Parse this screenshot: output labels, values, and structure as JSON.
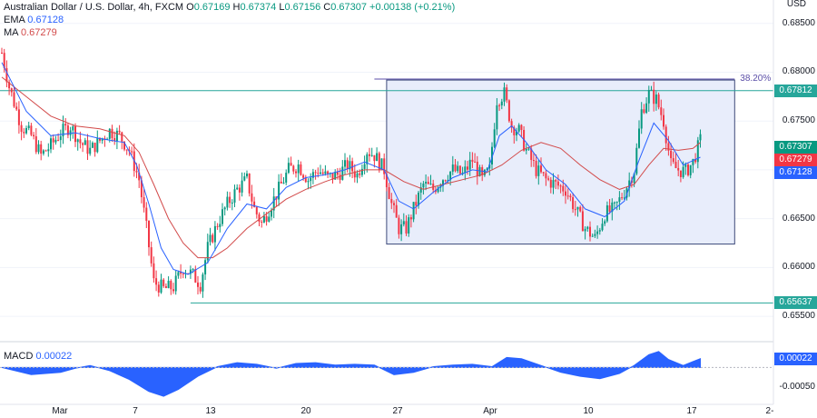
{
  "header": {
    "symbol": "Australian Dollar / U.S. Dollar, 4h, FXCM",
    "ohlc": [
      {
        "key": "O",
        "value": "0.67169"
      },
      {
        "key": "H",
        "value": "0.67374"
      },
      {
        "key": "L",
        "value": "0.67156"
      },
      {
        "key": "C",
        "value": "0.67307"
      }
    ],
    "change": "+0.00138 (+0.21%)",
    "ema_label": "EMA",
    "ema_value": "0.67128",
    "ma_label": "MA",
    "ma_value": "0.67279",
    "macd_label": "MACD",
    "macd_value": "0.00022"
  },
  "colors": {
    "up": "#089981",
    "down": "#f23645",
    "ema": "#2962ff",
    "ma": "#d24a4a",
    "hline": "#26a69a",
    "box_fill": "#e8edfb",
    "box_stroke": "#3d4a7a",
    "fib": "#5b4fa8",
    "macd": "#2962ff",
    "grid": "#f0f3fa"
  },
  "chart_data": [
    {
      "type": "candlestick",
      "currency_label": "USD",
      "y_ticks": [
        "0.68500",
        "0.68000",
        "0.67500",
        "0.67000",
        "0.66500",
        "0.66000",
        "0.65500"
      ],
      "ylim": [
        0.6524,
        0.6874
      ],
      "x_labels": [
        "Mar",
        "7",
        "13",
        "20",
        "27",
        "Apr",
        "10",
        "17",
        "2-"
      ],
      "levels": [
        {
          "value": 0.67812,
          "label": "0.67812",
          "color": "#26a69a"
        },
        {
          "value": 0.65637,
          "label": "0.65637",
          "color": "#26a69a"
        }
      ],
      "fib_line": {
        "value": 0.6793,
        "label": "38.20%"
      },
      "range_box": {
        "top": 0.6792,
        "bottom": 0.6624
      },
      "price_tags": [
        {
          "label": "0.67307",
          "color": "#089981",
          "value": 0.67307
        },
        {
          "label": "0.67279",
          "color": "#f23645",
          "value": 0.67279
        },
        {
          "label": "0.67128",
          "color": "#2962ff",
          "value": 0.67128
        }
      ],
      "close_path": [
        [
          0,
          0.682
        ],
        [
          3,
          0.6785
        ],
        [
          8,
          0.6745
        ],
        [
          12,
          0.6735
        ],
        [
          16,
          0.6715
        ],
        [
          20,
          0.6725
        ],
        [
          24,
          0.6738
        ],
        [
          28,
          0.6745
        ],
        [
          32,
          0.6728
        ],
        [
          36,
          0.672
        ],
        [
          40,
          0.673
        ],
        [
          44,
          0.674
        ],
        [
          48,
          0.6735
        ],
        [
          52,
          0.672
        ],
        [
          56,
          0.669
        ],
        [
          59,
          0.664
        ],
        [
          62,
          0.6585
        ],
        [
          66,
          0.6578
        ],
        [
          70,
          0.658
        ],
        [
          74,
          0.66
        ],
        [
          78,
          0.6592
        ],
        [
          81,
          0.6583
        ],
        [
          84,
          0.662
        ],
        [
          88,
          0.6645
        ],
        [
          92,
          0.6665
        ],
        [
          96,
          0.668
        ],
        [
          100,
          0.669
        ],
        [
          103,
          0.666
        ],
        [
          106,
          0.6645
        ],
        [
          109,
          0.666
        ],
        [
          113,
          0.668
        ],
        [
          117,
          0.67
        ],
        [
          121,
          0.6705
        ],
        [
          125,
          0.669
        ],
        [
          129,
          0.67
        ],
        [
          133,
          0.6692
        ],
        [
          137,
          0.6695
        ],
        [
          141,
          0.6705
        ],
        [
          145,
          0.6695
        ],
        [
          149,
          0.672
        ],
        [
          152,
          0.6715
        ],
        [
          156,
          0.67
        ],
        [
          159,
          0.6665
        ],
        [
          162,
          0.664
        ],
        [
          165,
          0.664
        ],
        [
          168,
          0.666
        ],
        [
          172,
          0.6685
        ],
        [
          176,
          0.668
        ],
        [
          180,
          0.6692
        ],
        [
          184,
          0.67
        ],
        [
          188,
          0.6695
        ],
        [
          192,
          0.671
        ],
        [
          196,
          0.669
        ],
        [
          199,
          0.67
        ],
        [
          202,
          0.6772
        ],
        [
          205,
          0.6778
        ],
        [
          208,
          0.6745
        ],
        [
          211,
          0.674
        ],
        [
          214,
          0.672
        ],
        [
          218,
          0.67
        ],
        [
          222,
          0.669
        ],
        [
          226,
          0.6685
        ],
        [
          230,
          0.668
        ],
        [
          234,
          0.666
        ],
        [
          238,
          0.664
        ],
        [
          242,
          0.663
        ],
        [
          246,
          0.6655
        ],
        [
          250,
          0.666
        ],
        [
          254,
          0.6678
        ],
        [
          258,
          0.67
        ],
        [
          261,
          0.676
        ],
        [
          264,
          0.6778
        ],
        [
          267,
          0.6772
        ],
        [
          270,
          0.675
        ],
        [
          273,
          0.6705
        ],
        [
          276,
          0.67
        ],
        [
          279,
          0.6698
        ],
        [
          282,
          0.6708
        ],
        [
          285,
          0.673
        ]
      ],
      "ema_path": [
        [
          0,
          0.681
        ],
        [
          10,
          0.676
        ],
        [
          20,
          0.6735
        ],
        [
          30,
          0.6738
        ],
        [
          40,
          0.6732
        ],
        [
          50,
          0.6728
        ],
        [
          55,
          0.6705
        ],
        [
          60,
          0.6665
        ],
        [
          65,
          0.662
        ],
        [
          70,
          0.6598
        ],
        [
          76,
          0.6593
        ],
        [
          84,
          0.6605
        ],
        [
          92,
          0.664
        ],
        [
          100,
          0.6665
        ],
        [
          108,
          0.666
        ],
        [
          116,
          0.6682
        ],
        [
          124,
          0.6692
        ],
        [
          132,
          0.6695
        ],
        [
          140,
          0.67
        ],
        [
          148,
          0.6708
        ],
        [
          156,
          0.67
        ],
        [
          162,
          0.6668
        ],
        [
          168,
          0.666
        ],
        [
          176,
          0.6677
        ],
        [
          184,
          0.6692
        ],
        [
          192,
          0.67
        ],
        [
          198,
          0.6698
        ],
        [
          203,
          0.6735
        ],
        [
          208,
          0.6745
        ],
        [
          214,
          0.6728
        ],
        [
          222,
          0.67
        ],
        [
          230,
          0.6685
        ],
        [
          238,
          0.666
        ],
        [
          246,
          0.6652
        ],
        [
          254,
          0.6668
        ],
        [
          260,
          0.671
        ],
        [
          266,
          0.6748
        ],
        [
          272,
          0.673
        ],
        [
          278,
          0.6705
        ],
        [
          285,
          0.6713
        ]
      ],
      "ma_path": [
        [
          0,
          0.6795
        ],
        [
          10,
          0.6775
        ],
        [
          20,
          0.6755
        ],
        [
          30,
          0.6745
        ],
        [
          40,
          0.6742
        ],
        [
          50,
          0.6735
        ],
        [
          56,
          0.6718
        ],
        [
          62,
          0.6685
        ],
        [
          68,
          0.665
        ],
        [
          74,
          0.6625
        ],
        [
          80,
          0.661
        ],
        [
          86,
          0.661
        ],
        [
          92,
          0.662
        ],
        [
          100,
          0.664
        ],
        [
          108,
          0.6655
        ],
        [
          116,
          0.667
        ],
        [
          124,
          0.668
        ],
        [
          132,
          0.6688
        ],
        [
          140,
          0.6695
        ],
        [
          148,
          0.67
        ],
        [
          156,
          0.67
        ],
        [
          164,
          0.6688
        ],
        [
          172,
          0.668
        ],
        [
          180,
          0.6685
        ],
        [
          188,
          0.669
        ],
        [
          196,
          0.6695
        ],
        [
          204,
          0.6705
        ],
        [
          212,
          0.672
        ],
        [
          220,
          0.6728
        ],
        [
          228,
          0.6722
        ],
        [
          236,
          0.6705
        ],
        [
          244,
          0.669
        ],
        [
          252,
          0.668
        ],
        [
          258,
          0.6685
        ],
        [
          264,
          0.6705
        ],
        [
          270,
          0.6722
        ],
        [
          276,
          0.672
        ],
        [
          282,
          0.6722
        ],
        [
          285,
          0.6728
        ]
      ]
    },
    {
      "type": "area",
      "name": "MACD",
      "value_label": "0.00022",
      "y_ticks": [
        "-0.00050"
      ],
      "ylim": [
        -0.0009,
        0.0006
      ],
      "points": [
        [
          0,
          0.0
        ],
        [
          12,
          -0.00018
        ],
        [
          24,
          -0.00012
        ],
        [
          30,
          -2e-05
        ],
        [
          36,
          5e-05
        ],
        [
          44,
          -8e-05
        ],
        [
          52,
          -0.0003
        ],
        [
          60,
          -0.0006
        ],
        [
          66,
          -0.00072
        ],
        [
          72,
          -0.00055
        ],
        [
          80,
          -0.00022
        ],
        [
          88,
          2e-05
        ],
        [
          96,
          0.00012
        ],
        [
          104,
          8e-05
        ],
        [
          112,
          -2e-05
        ],
        [
          120,
          0.0001
        ],
        [
          128,
          0.00012
        ],
        [
          136,
          6e-05
        ],
        [
          144,
          8e-05
        ],
        [
          152,
          6e-05
        ],
        [
          160,
          -0.00018
        ],
        [
          168,
          -0.00012
        ],
        [
          176,
          2e-05
        ],
        [
          184,
          6e-05
        ],
        [
          192,
          8e-05
        ],
        [
          200,
          2e-05
        ],
        [
          206,
          0.00025
        ],
        [
          212,
          0.00022
        ],
        [
          220,
          5e-05
        ],
        [
          228,
          -0.00012
        ],
        [
          236,
          -0.00022
        ],
        [
          244,
          -0.00028
        ],
        [
          252,
          -0.00015
        ],
        [
          258,
          5e-05
        ],
        [
          264,
          0.00032
        ],
        [
          268,
          0.0004
        ],
        [
          272,
          0.0002
        ],
        [
          278,
          5e-05
        ],
        [
          285,
          0.00022
        ]
      ]
    }
  ]
}
